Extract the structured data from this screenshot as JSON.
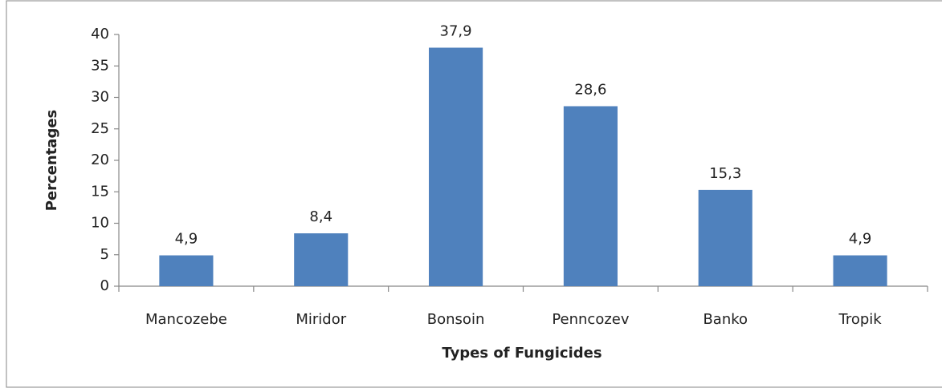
{
  "chart_data": {
    "type": "bar",
    "x_label": "Types of Fungicides",
    "y_label": "Percentages",
    "categories": [
      "Mancozebe",
      "Miridor",
      "Bonsoin",
      "Penncozev",
      "Banko",
      "Tropik"
    ],
    "values": [
      4.9,
      8.4,
      37.9,
      28.6,
      15.3,
      4.9
    ],
    "value_labels": [
      "4,9",
      "8,4",
      "37,9",
      "28,6",
      "15,3",
      "4,9"
    ],
    "color": "#4f81bd",
    "ylim": [
      0,
      40
    ],
    "yticks": [
      0,
      5,
      10,
      15,
      20,
      25,
      30,
      35,
      40
    ],
    "grid": false
  }
}
